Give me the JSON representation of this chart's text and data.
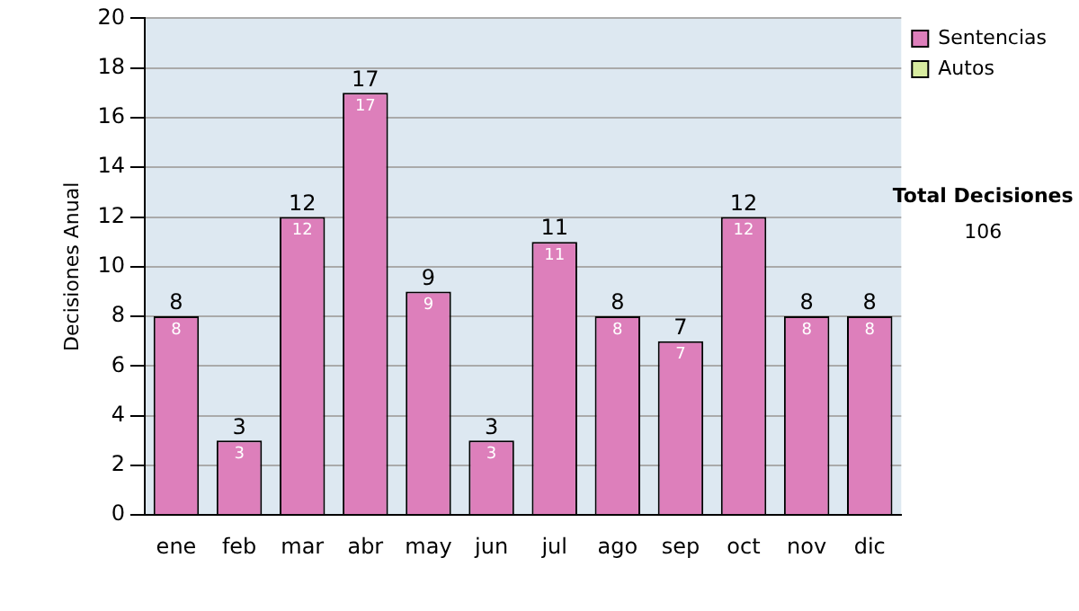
{
  "chart_data": {
    "type": "bar",
    "ylabel": "Decisiones Anual",
    "categories": [
      "ene",
      "feb",
      "mar",
      "abr",
      "may",
      "jun",
      "jul",
      "ago",
      "sep",
      "oct",
      "nov",
      "dic"
    ],
    "series": [
      {
        "name": "Sentencias",
        "color": "#dd7fbb",
        "values": [
          8,
          3,
          12,
          17,
          9,
          3,
          11,
          8,
          7,
          12,
          8,
          8
        ],
        "value_labels": [
          "8",
          "3",
          "12",
          "17",
          "9",
          "3",
          "11",
          "8",
          "7",
          "12",
          "8",
          "8"
        ]
      },
      {
        "name": "Autos",
        "color": "#d8eca0",
        "values": [
          0,
          0,
          0,
          0,
          0,
          0,
          0,
          0,
          0,
          0,
          0,
          0
        ]
      }
    ],
    "stacked": true,
    "totals": [
      "8",
      "3",
      "12",
      "17",
      "9",
      "3",
      "11",
      "8",
      "7",
      "12",
      "8",
      "8"
    ],
    "ylim": [
      0,
      20
    ],
    "yticks": [
      0,
      2,
      4,
      6,
      8,
      10,
      12,
      14,
      16,
      18,
      20
    ],
    "grid": "y",
    "legend": "right",
    "annotations": [
      "Total Decisiones",
      "106"
    ]
  }
}
